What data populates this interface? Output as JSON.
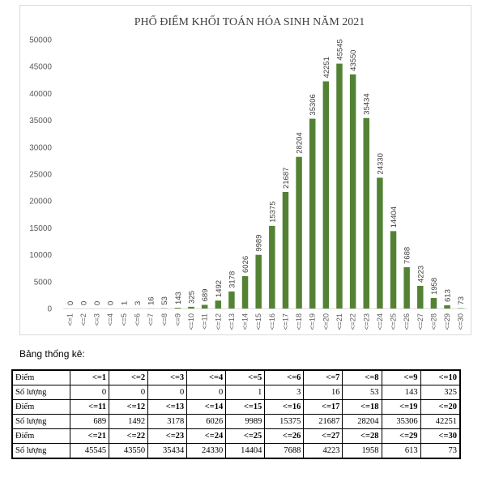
{
  "chart_data": {
    "type": "bar",
    "title": "PHỔ ĐIỂM KHỐI TOÁN HÓA SINH NĂM 2021",
    "categories": [
      "<=1",
      "<=2",
      "<=3",
      "<=4",
      "<=5",
      "<=6",
      "<=7",
      "<=8",
      "<=9",
      "<=10",
      "<=11",
      "<=12",
      "<=13",
      "<=14",
      "<=15",
      "<=16",
      "<=17",
      "<=18",
      "<=19",
      "<=20",
      "<=21",
      "<=22",
      "<=23",
      "<=24",
      "<=25",
      "<=26",
      "<=27",
      "<=28",
      "<=29",
      "<=30"
    ],
    "values": [
      0,
      0,
      0,
      0,
      1,
      3,
      16,
      53,
      143,
      325,
      689,
      1492,
      3178,
      6026,
      9989,
      15375,
      21687,
      28204,
      35306,
      42251,
      45545,
      43550,
      35434,
      24330,
      14404,
      7688,
      4223,
      1958,
      613,
      73
    ],
    "yticks": [
      0,
      5000,
      10000,
      15000,
      20000,
      25000,
      30000,
      35000,
      40000,
      45000,
      50000
    ],
    "ylim": [
      0,
      50000
    ],
    "bar_color": "#548235",
    "grid": false,
    "legend": "none",
    "data_labels": true
  },
  "table": {
    "heading": "Bảng thống kê:",
    "header_label": "Điểm",
    "count_label": "Số lượng",
    "blocks": [
      {
        "points": [
          "<=1",
          "<=2",
          "<=3",
          "<=4",
          "<=5",
          "<=6",
          "<=7",
          "<=8",
          "<=9",
          "<=10"
        ],
        "counts": [
          "0",
          "0",
          "0",
          "0",
          "1",
          "3",
          "16",
          "53",
          "143",
          "325"
        ]
      },
      {
        "points": [
          "<=11",
          "<=12",
          "<=13",
          "<=14",
          "<=15",
          "<=16",
          "<=17",
          "<=18",
          "<=19",
          "<=20"
        ],
        "counts": [
          "689",
          "1492",
          "3178",
          "6026",
          "9989",
          "15375",
          "21687",
          "28204",
          "35306",
          "42251"
        ]
      },
      {
        "points": [
          "<=21",
          "<=22",
          "<=23",
          "<=24",
          "<=25",
          "<=26",
          "<=27",
          "<=28",
          "<=29",
          "<=30"
        ],
        "counts": [
          "45545",
          "43550",
          "35434",
          "24330",
          "14404",
          "7688",
          "4223",
          "1958",
          "613",
          "73"
        ]
      }
    ]
  }
}
